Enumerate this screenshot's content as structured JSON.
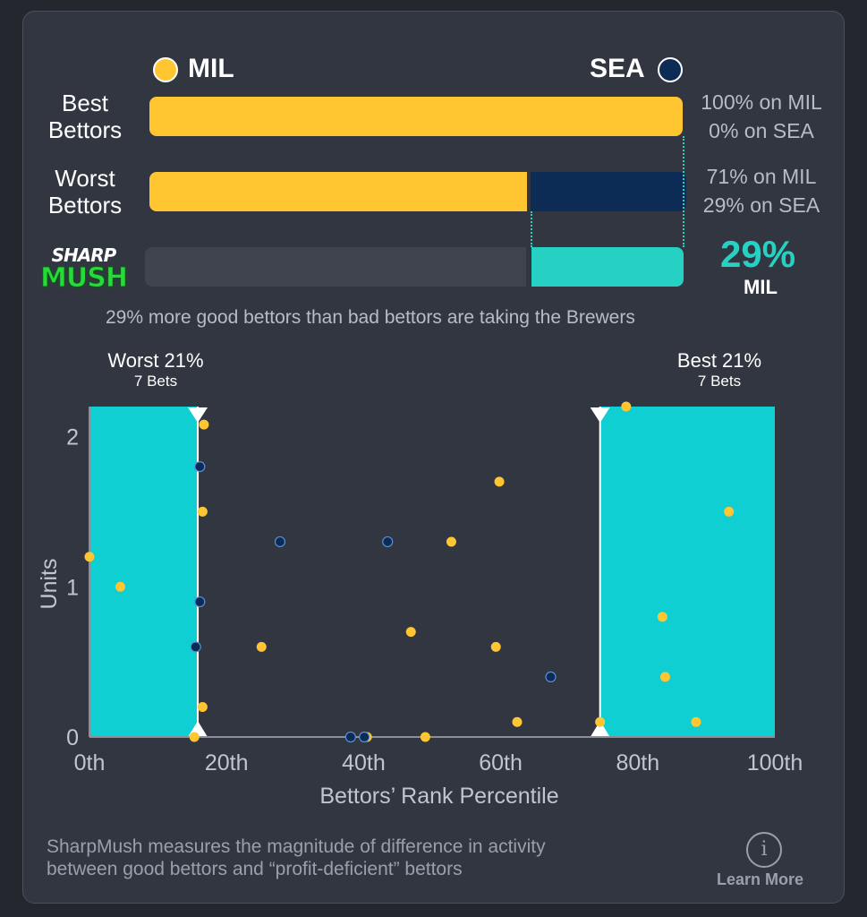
{
  "teams": {
    "home": {
      "abbr": "MIL",
      "color": "#ffc632"
    },
    "away": {
      "abbr": "SEA",
      "color": "#0c2c56"
    }
  },
  "rows": [
    {
      "label_line1": "Best",
      "label_line2": "Bettors",
      "mil_pct": 100,
      "sea_pct": 0,
      "mil_text": "100% on MIL",
      "sea_text": "0% on SEA"
    },
    {
      "label_line1": "Worst",
      "label_line2": "Bettors",
      "mil_pct": 71,
      "sea_pct": 29,
      "mil_text": "71% on MIL",
      "sea_text": "29% on SEA"
    }
  ],
  "sharpmush": {
    "logo_top": "SHARP",
    "logo_bottom": "MUSH",
    "value_pct": 29,
    "value_text": "29%",
    "team": "MIL",
    "accent": "#26d1c4",
    "summary": "29% more good bettors than bad bettors are taking the Brewers"
  },
  "chart_data": {
    "type": "scatter",
    "xlabel": "Bettors’ Rank Percentile",
    "ylabel": "Units",
    "xlim": [
      0,
      100
    ],
    "ylim": [
      0,
      2.2
    ],
    "x_ticks": [
      "0th",
      "20th",
      "40th",
      "60th",
      "80th",
      "100th"
    ],
    "x_tick_values": [
      0,
      20,
      40,
      60,
      80,
      100
    ],
    "y_ticks": [
      "0",
      "1",
      "2"
    ],
    "y_tick_values": [
      0,
      1,
      2
    ],
    "zones": [
      {
        "name": "Worst",
        "title": "Worst 21%",
        "sub": "7 Bets",
        "from": 0,
        "to": 15.8
      },
      {
        "name": "Best",
        "title": "Best 21%",
        "sub": "7 Bets",
        "from": 74.5,
        "to": 100
      }
    ],
    "series": [
      {
        "name": "MIL",
        "color": "#ffc632",
        "points": [
          {
            "x": 0,
            "y": 1.2
          },
          {
            "x": 4.5,
            "y": 1.0
          },
          {
            "x": 15.3,
            "y": 0.0
          },
          {
            "x": 16.7,
            "y": 2.08
          },
          {
            "x": 16.5,
            "y": 1.5
          },
          {
            "x": 16.5,
            "y": 0.2
          },
          {
            "x": 25.1,
            "y": 0.6
          },
          {
            "x": 40.5,
            "y": 0.0
          },
          {
            "x": 46.9,
            "y": 0.7
          },
          {
            "x": 49.0,
            "y": 0.0
          },
          {
            "x": 52.8,
            "y": 1.3
          },
          {
            "x": 59.3,
            "y": 0.6
          },
          {
            "x": 59.8,
            "y": 1.7
          },
          {
            "x": 62.4,
            "y": 0.1
          },
          {
            "x": 74.5,
            "y": 0.1
          },
          {
            "x": 78.3,
            "y": 2.2
          },
          {
            "x": 83.6,
            "y": 0.8
          },
          {
            "x": 84.0,
            "y": 0.4
          },
          {
            "x": 88.5,
            "y": 0.1
          },
          {
            "x": 93.3,
            "y": 1.5
          }
        ]
      },
      {
        "name": "SEA",
        "color": "#0c2c56",
        "points": [
          {
            "x": 16.1,
            "y": 1.8
          },
          {
            "x": 16.1,
            "y": 0.9
          },
          {
            "x": 15.5,
            "y": 0.6
          },
          {
            "x": 27.8,
            "y": 1.3
          },
          {
            "x": 38.1,
            "y": 0.0
          },
          {
            "x": 40.1,
            "y": 0.0
          },
          {
            "x": 43.5,
            "y": 1.3
          },
          {
            "x": 67.3,
            "y": 0.4
          }
        ]
      }
    ]
  },
  "footer": {
    "text_line1": "SharpMush measures the magnitude of difference in activity",
    "text_line2": "between good bettors and “profit-deficient” bettors",
    "learn_more": "Learn More",
    "info_glyph": "i",
    "info_icon": "info-circle-icon"
  }
}
